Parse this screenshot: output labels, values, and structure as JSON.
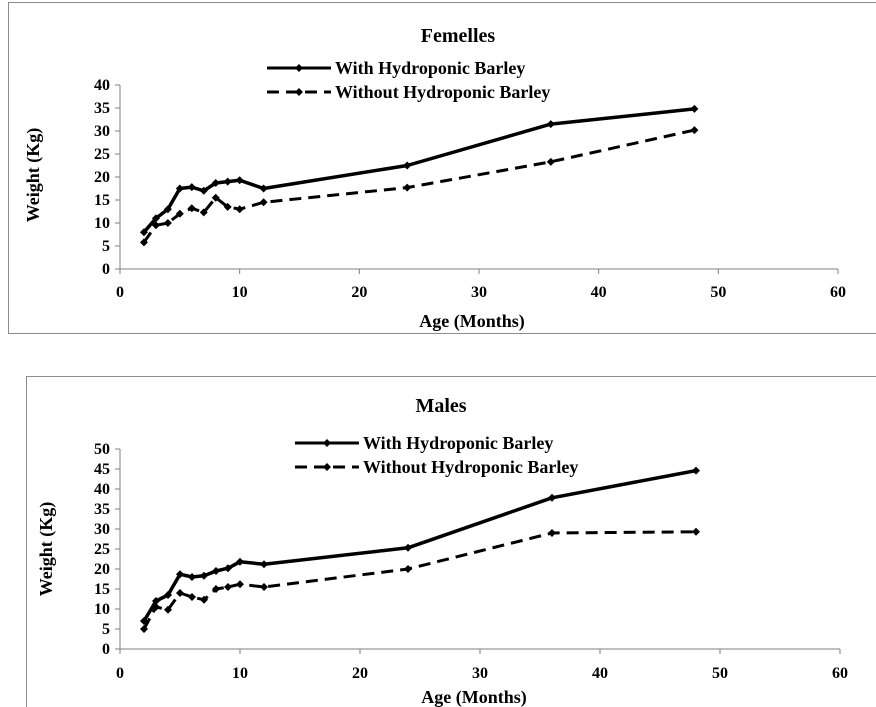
{
  "chart_data": [
    {
      "type": "line",
      "title": "Femelles",
      "xlabel": "Age (Months)",
      "ylabel": "Weight (Kg)",
      "xlim": [
        0,
        60
      ],
      "ylim": [
        0,
        40
      ],
      "x_ticks": [
        "0",
        "10",
        "20",
        "30",
        "40",
        "50",
        "60"
      ],
      "y_ticks": [
        "0",
        "5",
        "10",
        "15",
        "20",
        "25",
        "30",
        "35",
        "40"
      ],
      "grid": false,
      "legend_position": "top-center",
      "series": [
        {
          "name": "With Hydroponic Barley",
          "style": "solid",
          "x": [
            2,
            3,
            4,
            5,
            6,
            7,
            8,
            9,
            10,
            12,
            24,
            36,
            48
          ],
          "y": [
            8,
            11,
            13,
            17.5,
            17.8,
            17,
            18.7,
            19,
            19.3,
            17.5,
            22.5,
            31.5,
            34.8
          ]
        },
        {
          "name": "Without Hydroponic Barley",
          "style": "dashed",
          "x": [
            2,
            3,
            4,
            5,
            6,
            7,
            8,
            9,
            10,
            12,
            24,
            36,
            48
          ],
          "y": [
            5.8,
            9.5,
            10,
            12,
            13.2,
            12.3,
            15.5,
            13.5,
            13,
            14.5,
            17.7,
            23.3,
            30.2
          ]
        }
      ]
    },
    {
      "type": "line",
      "title": "Males",
      "xlabel": "Age (Months)",
      "ylabel": "Weight (Kg)",
      "xlim": [
        0,
        60
      ],
      "ylim": [
        0,
        50
      ],
      "x_ticks": [
        "0",
        "10",
        "20",
        "30",
        "40",
        "50",
        "60"
      ],
      "y_ticks": [
        "0",
        "5",
        "10",
        "15",
        "20",
        "25",
        "30",
        "35",
        "40",
        "45",
        "50"
      ],
      "grid": false,
      "legend_position": "top-center",
      "series": [
        {
          "name": "With Hydroponic Barley",
          "style": "solid",
          "x": [
            2,
            3,
            4,
            5,
            6,
            7,
            8,
            9,
            10,
            12,
            24,
            36,
            48
          ],
          "y": [
            7,
            12,
            13.5,
            18.7,
            18,
            18.3,
            19.5,
            20.2,
            21.8,
            21.2,
            25.3,
            37.8,
            44.6
          ]
        },
        {
          "name": "Without Hydroponic Barley",
          "style": "dashed",
          "x": [
            2,
            3,
            4,
            5,
            6,
            7,
            8,
            9,
            10,
            12,
            24,
            36,
            48
          ],
          "y": [
            5,
            10.5,
            9.8,
            14,
            13,
            12.3,
            15,
            15.5,
            16.2,
            15.5,
            20,
            29,
            29.3
          ]
        }
      ]
    }
  ],
  "colors": {
    "line": "#000000",
    "frame": "#8c8c8c",
    "axis": "#808080"
  }
}
